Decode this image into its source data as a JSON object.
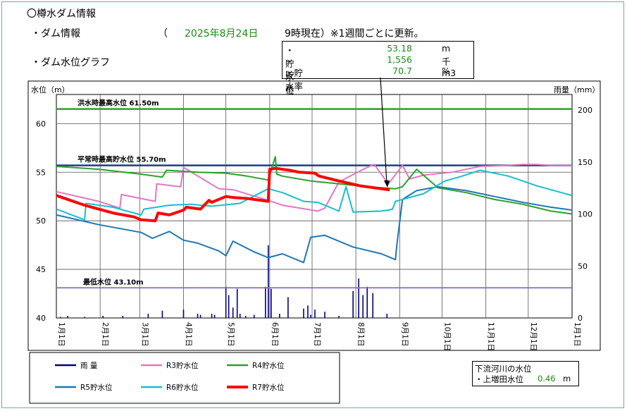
{
  "header": {
    "title": "〇樽水ダム情報",
    "dam_info_label": "・ダム情報",
    "date_open": "（",
    "date": "2025年8月24日",
    "date_close": "9時現在）※1週間ごとに更新。",
    "graph_label": "・ダム水位グラフ"
  },
  "info_box": [
    {
      "label": "・貯水位",
      "value": "53.18",
      "unit": "m"
    },
    {
      "label": "・貯水容量",
      "value": "1,556",
      "unit": "千m3"
    },
    {
      "label": "・貯水率（利水容量）",
      "value": "70.7",
      "unit": "%"
    }
  ],
  "downstream": {
    "title": "下流河川の水位",
    "label": "・上増田水位",
    "value": "0.46",
    "unit": "m"
  },
  "colors": {
    "R3": "#e377c2",
    "R4": "#2ca02c",
    "R5": "#1f77b4",
    "R6": "#17becf",
    "R7": "#ff0000",
    "rain": "#000080",
    "flood": "#2ca02c",
    "normal": "#1f3a93",
    "min": "#9467bd",
    "accent": "#1a8a1a"
  },
  "chart_data": {
    "type": "line",
    "ylabel": "水位（m）",
    "y2label": "雨量（mm）",
    "ylim": [
      40,
      63
    ],
    "y2lim": [
      0,
      215
    ],
    "yticks": [
      40,
      45,
      50,
      55,
      60
    ],
    "y2ticks": [
      0,
      50,
      100,
      150,
      200
    ],
    "xlim": [
      0,
      365
    ],
    "month_ticks": [
      {
        "label": "1月1日",
        "day": 0
      },
      {
        "label": "2月1日",
        "day": 31
      },
      {
        "label": "3月1日",
        "day": 59
      },
      {
        "label": "4月1日",
        "day": 90
      },
      {
        "label": "5月1日",
        "day": 120
      },
      {
        "label": "6月1日",
        "day": 151
      },
      {
        "label": "7月1日",
        "day": 181
      },
      {
        "label": "8月1日",
        "day": 212
      },
      {
        "label": "9月1日",
        "day": 243
      },
      {
        "label": "10月1日",
        "day": 273
      },
      {
        "label": "11月1日",
        "day": 304
      },
      {
        "label": "12月1日",
        "day": 334
      },
      {
        "label": "1月1日",
        "day": 365
      }
    ],
    "reference_lines": [
      {
        "label": "洪水時最高水位 61.50m",
        "y": 61.5
      },
      {
        "label": "平常時最高貯水位 55.70m",
        "y": 55.7
      },
      {
        "label": "最低水位 43.10m",
        "y": 43.1
      }
    ],
    "series": [
      {
        "name": "R3貯水位",
        "key": "R3",
        "x": [
          0,
          30,
          45,
          46,
          70,
          71,
          88,
          90,
          115,
          125,
          150,
          160,
          185,
          190,
          200,
          220,
          225,
          235,
          245,
          250,
          260,
          280,
          300,
          320,
          330,
          340,
          350,
          365
        ],
        "y": [
          53.0,
          52.0,
          51.3,
          52.7,
          52.0,
          53.8,
          53.5,
          55.5,
          53.3,
          53.2,
          52.1,
          51.6,
          51.0,
          51.3,
          54.0,
          55.5,
          55.8,
          53.8,
          55.7,
          54.3,
          54.7,
          55.0,
          55.6,
          55.7,
          55.8,
          55.8,
          55.7,
          55.7
        ]
      },
      {
        "name": "R4貯水位",
        "key": "R4",
        "x": [
          0,
          30,
          60,
          75,
          78,
          100,
          120,
          135,
          150,
          155,
          156,
          160,
          180,
          200,
          220,
          240,
          245,
          255,
          270,
          290,
          310,
          330,
          350,
          365
        ],
        "y": [
          55.6,
          55.3,
          54.8,
          54.5,
          55.2,
          55.0,
          54.9,
          54.6,
          54.2,
          56.6,
          54.8,
          54.6,
          54.1,
          53.8,
          53.5,
          53.3,
          53.5,
          55.3,
          53.4,
          52.9,
          52.2,
          51.7,
          51.0,
          50.7
        ]
      },
      {
        "name": "R5貯水位",
        "key": "R5",
        "x": [
          0,
          30,
          60,
          68,
          80,
          90,
          100,
          115,
          120,
          125,
          140,
          150,
          160,
          175,
          180,
          190,
          210,
          230,
          240,
          241,
          245,
          255,
          270,
          290,
          310,
          330,
          350,
          365
        ],
        "y": [
          50.6,
          49.6,
          48.8,
          48.2,
          48.9,
          48.0,
          47.7,
          46.9,
          46.4,
          47.9,
          46.8,
          46.2,
          46.6,
          45.7,
          48.3,
          48.5,
          47.3,
          46.6,
          46.0,
          47.5,
          52.2,
          53.1,
          53.5,
          53.1,
          52.5,
          51.9,
          51.4,
          51.1
        ]
      },
      {
        "name": "R6貯水位",
        "key": "R6",
        "x": [
          0,
          20,
          21,
          40,
          60,
          62,
          80,
          95,
          110,
          130,
          150,
          160,
          175,
          185,
          200,
          205,
          210,
          230,
          235,
          238,
          240,
          260,
          275,
          285,
          300,
          320,
          340,
          365
        ],
        "y": [
          51.2,
          50.1,
          51.8,
          51.4,
          50.6,
          51.2,
          51.6,
          51.7,
          51.5,
          51.8,
          53.3,
          52.9,
          52.0,
          51.9,
          51.0,
          53.5,
          50.9,
          51.0,
          51.1,
          51.2,
          52.0,
          52.8,
          54.1,
          54.5,
          55.2,
          54.6,
          53.6,
          52.6
        ]
      },
      {
        "name": "R7貯水位",
        "key": "R7",
        "x": [
          0,
          20,
          40,
          55,
          60,
          70,
          72,
          80,
          90,
          92,
          102,
          108,
          110,
          120,
          125,
          135,
          150,
          151,
          155,
          165,
          172,
          183,
          186,
          200,
          215,
          225,
          235,
          236
        ],
        "y": [
          52.6,
          51.6,
          50.8,
          50.4,
          50.1,
          50.0,
          50.8,
          50.6,
          51.1,
          51.4,
          51.2,
          52.1,
          51.9,
          52.5,
          52.4,
          52.3,
          52.0,
          55.3,
          55.4,
          55.2,
          55.0,
          54.9,
          54.6,
          54.1,
          53.6,
          53.4,
          53.2,
          53.18
        ]
      }
    ],
    "rainfall": {
      "x": [
        3,
        8,
        20,
        33,
        47,
        65,
        75,
        90,
        100,
        102,
        110,
        112,
        120,
        122,
        125,
        128,
        130,
        134,
        140,
        148,
        150,
        152,
        158,
        164,
        175,
        178,
        180,
        183,
        190,
        200,
        210,
        214,
        217,
        220,
        224,
        234
      ],
      "y": [
        1,
        2,
        1,
        2,
        2,
        4,
        7,
        8,
        4,
        3,
        4,
        3,
        30,
        22,
        10,
        28,
        4,
        2,
        3,
        30,
        70,
        28,
        4,
        20,
        9,
        12,
        3,
        8,
        6,
        2,
        26,
        38,
        22,
        30,
        24,
        4
      ]
    },
    "legend": [
      {
        "name": "雨 量",
        "key": "rain"
      },
      {
        "name": "R3貯水位",
        "key": "R3"
      },
      {
        "name": "R4貯水位",
        "key": "R4"
      },
      {
        "name": "R5貯水位",
        "key": "R5"
      },
      {
        "name": "R6貯水位",
        "key": "R6"
      },
      {
        "name": "R7貯水位",
        "key": "R7"
      }
    ],
    "grid": true,
    "legend_position": "bottom"
  }
}
